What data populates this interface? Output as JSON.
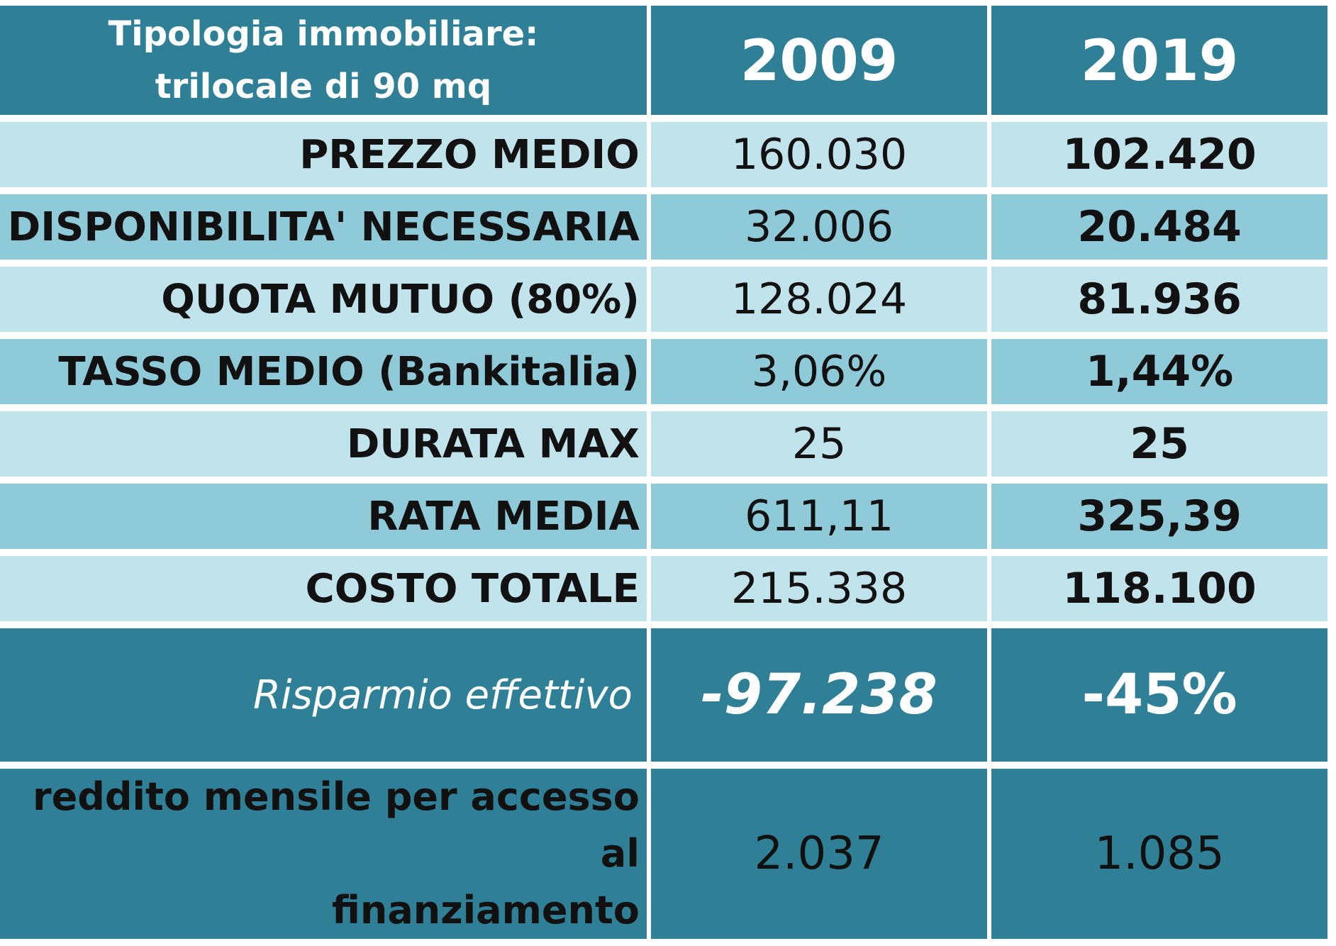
{
  "chart_data": {
    "type": "table",
    "header": {
      "label_line1": "Tipologia immobiliare:",
      "label_line2": "trilocale di 90 mq",
      "col_2009": "2009",
      "col_2019": "2019"
    },
    "rows": [
      {
        "label": "PREZZO MEDIO",
        "v2009": "160.030",
        "v2019": "102.420",
        "shade": "light"
      },
      {
        "label": "DISPONIBILITA' NECESSARIA",
        "v2009": "32.006",
        "v2019": "20.484",
        "shade": "dark"
      },
      {
        "label": "QUOTA MUTUO (80%)",
        "v2009": "128.024",
        "v2019": "81.936",
        "shade": "light"
      },
      {
        "label": "TASSO MEDIO (Bankitalia)",
        "v2009": "3,06%",
        "v2019": "1,44%",
        "shade": "dark"
      },
      {
        "label": "DURATA MAX",
        "v2009": "25",
        "v2019": "25",
        "shade": "light"
      },
      {
        "label": "RATA MEDIA",
        "v2009": "611,11",
        "v2019": "325,39",
        "shade": "dark"
      },
      {
        "label": "COSTO TOTALE",
        "v2009": "215.338",
        "v2019": "118.100",
        "shade": "light"
      }
    ],
    "saving": {
      "label": "Risparmio effettivo",
      "v2009": "-97.238",
      "v2019": "-45%"
    },
    "income": {
      "label_line1": "reddito mensile per accesso al",
      "label_line2": "finanziamento",
      "v2009": "2.037",
      "v2019": "1.085"
    }
  },
  "colors": {
    "header_bg": "#2f8096",
    "row_light": "#c1e4ec",
    "row_dark": "#8fcad9",
    "header_text": "#ffffff",
    "body_text": "#111111"
  }
}
